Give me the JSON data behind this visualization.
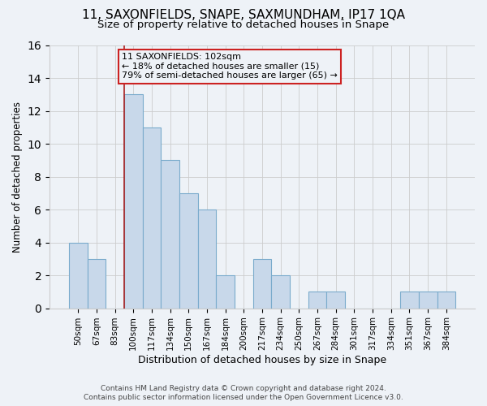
{
  "title1": "11, SAXONFIELDS, SNAPE, SAXMUNDHAM, IP17 1QA",
  "title2": "Size of property relative to detached houses in Snape",
  "xlabel": "Distribution of detached houses by size in Snape",
  "ylabel": "Number of detached properties",
  "footer1": "Contains HM Land Registry data © Crown copyright and database right 2024.",
  "footer2": "Contains public sector information licensed under the Open Government Licence v3.0.",
  "annotation_line1": "11 SAXONFIELDS: 102sqm",
  "annotation_line2": "← 18% of detached houses are smaller (15)",
  "annotation_line3": "79% of semi-detached houses are larger (65) →",
  "bar_labels": [
    "50sqm",
    "67sqm",
    "83sqm",
    "100sqm",
    "117sqm",
    "134sqm",
    "150sqm",
    "167sqm",
    "184sqm",
    "200sqm",
    "217sqm",
    "234sqm",
    "250sqm",
    "267sqm",
    "284sqm",
    "301sqm",
    "317sqm",
    "334sqm",
    "351sqm",
    "367sqm",
    "384sqm"
  ],
  "bar_values": [
    4,
    3,
    0,
    13,
    11,
    9,
    7,
    6,
    2,
    0,
    3,
    2,
    0,
    1,
    1,
    0,
    0,
    0,
    1,
    1,
    1
  ],
  "bar_color": "#c8d8ea",
  "bar_edge_color": "#7aaBcc",
  "vline_x_index": 3,
  "vline_color": "#aa2222",
  "ylim": [
    0,
    16
  ],
  "yticks": [
    0,
    2,
    4,
    6,
    8,
    10,
    12,
    14,
    16
  ],
  "grid_color": "#cccccc",
  "bg_color": "#eef2f7",
  "annotation_box_edge": "#cc2222",
  "title1_fontsize": 11,
  "title2_fontsize": 9.5,
  "xlabel_fontsize": 9,
  "ylabel_fontsize": 8.5,
  "tick_fontsize": 7.5,
  "annot_fontsize": 8,
  "footer_fontsize": 6.5
}
